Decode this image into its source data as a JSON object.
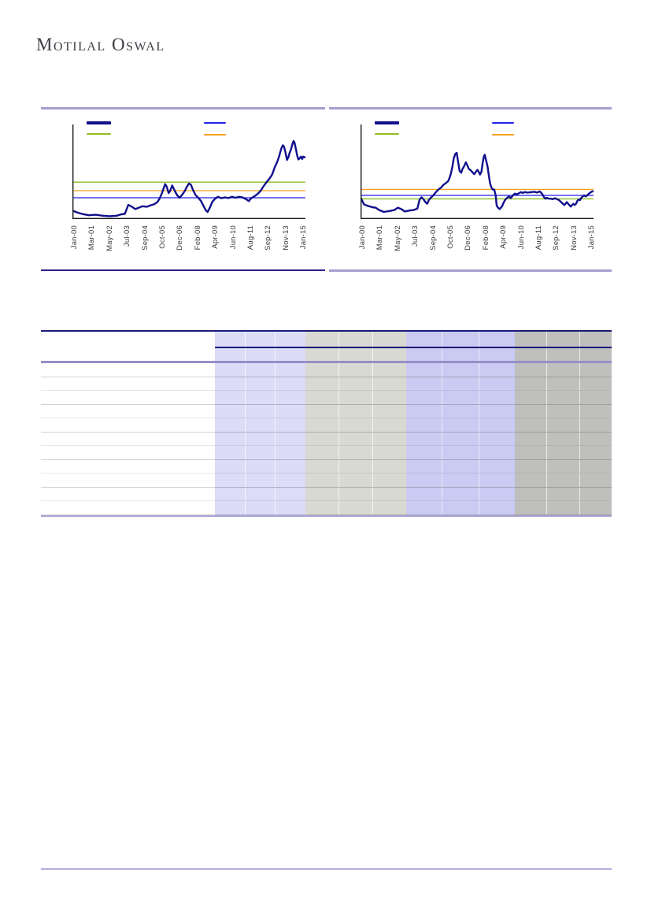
{
  "brand": {
    "name": "Motilal Oswal"
  },
  "colors": {
    "series_navy": "#10108c",
    "ref_blue": "#2222e8",
    "ref_green": "#8fbe1f",
    "ref_orange": "#f79f1c",
    "axis_black": "#1a1a1a",
    "divider_lavender": "#a79ecf",
    "divider_navy": "#2d2388",
    "footer_lavender": "#b5aedd",
    "table_top_border": "#1a1a78",
    "table_lavender_rule": "#968fc8",
    "table_bottom_border": "#a9a2d4"
  },
  "chart_data": [
    {
      "type": "line",
      "title": "",
      "xlabel": "",
      "ylabel": "",
      "x_tick_labels": [
        "Jan-00",
        "Mar-01",
        "May-02",
        "Jul-03",
        "Sep-04",
        "Oct-05",
        "Dec-06",
        "Feb-08",
        "Apr-09",
        "Jun-10",
        "Aug-11",
        "Sep-12",
        "Nov-13",
        "Jan-15"
      ],
      "note": "no y-axis tick values visible; y values normalized 0 (plot top) to 1 (baseline)",
      "legend_swatches": [
        {
          "color": "#10108c",
          "weight": "thick"
        },
        {
          "color": "#2222e8",
          "weight": "thin"
        },
        {
          "color": "#8fbe1f",
          "weight": "thin"
        },
        {
          "color": "#f79f1c",
          "weight": "thin"
        }
      ],
      "ref_lines": [
        {
          "color": "#8fbe1f",
          "y_norm": 0.61
        },
        {
          "color": "#f79f1c",
          "y_norm": 0.7
        },
        {
          "color": "#2222e8",
          "y_norm": 0.775
        }
      ],
      "series": [
        {
          "name": "primary",
          "color": "#10108c",
          "points_norm": [
            [
              0.0,
              0.91
            ],
            [
              0.02,
              0.93
            ],
            [
              0.04,
              0.945
            ],
            [
              0.07,
              0.96
            ],
            [
              0.1,
              0.955
            ],
            [
              0.13,
              0.965
            ],
            [
              0.16,
              0.97
            ],
            [
              0.19,
              0.965
            ],
            [
              0.21,
              0.95
            ],
            [
              0.225,
              0.945
            ],
            [
              0.24,
              0.85
            ],
            [
              0.255,
              0.87
            ],
            [
              0.27,
              0.895
            ],
            [
              0.285,
              0.88
            ],
            [
              0.3,
              0.865
            ],
            [
              0.32,
              0.87
            ],
            [
              0.335,
              0.855
            ],
            [
              0.35,
              0.845
            ],
            [
              0.365,
              0.82
            ],
            [
              0.375,
              0.78
            ],
            [
              0.385,
              0.72
            ],
            [
              0.398,
              0.63
            ],
            [
              0.405,
              0.66
            ],
            [
              0.413,
              0.725
            ],
            [
              0.42,
              0.7
            ],
            [
              0.428,
              0.645
            ],
            [
              0.435,
              0.68
            ],
            [
              0.443,
              0.72
            ],
            [
              0.45,
              0.75
            ],
            [
              0.46,
              0.775
            ],
            [
              0.472,
              0.74
            ],
            [
              0.483,
              0.7
            ],
            [
              0.49,
              0.665
            ],
            [
              0.5,
              0.625
            ],
            [
              0.508,
              0.635
            ],
            [
              0.518,
              0.695
            ],
            [
              0.528,
              0.745
            ],
            [
              0.54,
              0.775
            ],
            [
              0.552,
              0.81
            ],
            [
              0.562,
              0.86
            ],
            [
              0.572,
              0.905
            ],
            [
              0.58,
              0.925
            ],
            [
              0.59,
              0.88
            ],
            [
              0.6,
              0.82
            ],
            [
              0.612,
              0.785
            ],
            [
              0.625,
              0.765
            ],
            [
              0.64,
              0.78
            ],
            [
              0.655,
              0.772
            ],
            [
              0.67,
              0.778
            ],
            [
              0.685,
              0.765
            ],
            [
              0.7,
              0.775
            ],
            [
              0.715,
              0.765
            ],
            [
              0.73,
              0.772
            ],
            [
              0.745,
              0.79
            ],
            [
              0.757,
              0.81
            ],
            [
              0.768,
              0.778
            ],
            [
              0.78,
              0.762
            ],
            [
              0.795,
              0.735
            ],
            [
              0.808,
              0.7
            ],
            [
              0.82,
              0.655
            ],
            [
              0.833,
              0.61
            ],
            [
              0.845,
              0.575
            ],
            [
              0.857,
              0.53
            ],
            [
              0.868,
              0.455
            ],
            [
              0.878,
              0.4
            ],
            [
              0.886,
              0.345
            ],
            [
              0.893,
              0.285
            ],
            [
              0.898,
              0.245
            ],
            [
              0.903,
              0.22
            ],
            [
              0.908,
              0.235
            ],
            [
              0.915,
              0.3
            ],
            [
              0.921,
              0.375
            ],
            [
              0.927,
              0.345
            ],
            [
              0.932,
              0.3
            ],
            [
              0.938,
              0.265
            ],
            [
              0.944,
              0.21
            ],
            [
              0.949,
              0.175
            ],
            [
              0.953,
              0.19
            ],
            [
              0.959,
              0.26
            ],
            [
              0.965,
              0.33
            ],
            [
              0.97,
              0.37
            ],
            [
              0.976,
              0.355
            ],
            [
              0.981,
              0.34
            ],
            [
              0.986,
              0.365
            ],
            [
              0.991,
              0.34
            ],
            [
              1.0,
              0.35
            ]
          ]
        }
      ]
    },
    {
      "type": "line",
      "title": "",
      "xlabel": "",
      "ylabel": "",
      "x_tick_labels": [
        "Jan-00",
        "Mar-01",
        "May-02",
        "Jul-03",
        "Sep-04",
        "Oct-05",
        "Dec-06",
        "Feb-08",
        "Apr-09",
        "Jun-10",
        "Aug-11",
        "Sep-12",
        "Nov-13",
        "Jan-15"
      ],
      "note": "no y-axis tick values visible; y values normalized 0 (plot top) to 1 (baseline)",
      "legend_swatches": [
        {
          "color": "#10108c",
          "weight": "thick"
        },
        {
          "color": "#2222e8",
          "weight": "thin"
        },
        {
          "color": "#8fbe1f",
          "weight": "thin"
        },
        {
          "color": "#f79f1c",
          "weight": "thin"
        }
      ],
      "ref_lines": [
        {
          "color": "#f79f1c",
          "y_norm": 0.687
        },
        {
          "color": "#2222e8",
          "y_norm": 0.75
        },
        {
          "color": "#8fbe1f",
          "y_norm": 0.787
        }
      ],
      "series": [
        {
          "name": "primary",
          "color": "#10108c",
          "points_norm": [
            [
              0.0,
              0.77
            ],
            [
              0.015,
              0.845
            ],
            [
              0.03,
              0.86
            ],
            [
              0.05,
              0.875
            ],
            [
              0.065,
              0.88
            ],
            [
              0.08,
              0.905
            ],
            [
              0.1,
              0.925
            ],
            [
              0.125,
              0.915
            ],
            [
              0.145,
              0.905
            ],
            [
              0.16,
              0.88
            ],
            [
              0.175,
              0.895
            ],
            [
              0.19,
              0.92
            ],
            [
              0.21,
              0.91
            ],
            [
              0.228,
              0.905
            ],
            [
              0.244,
              0.89
            ],
            [
              0.254,
              0.79
            ],
            [
              0.262,
              0.77
            ],
            [
              0.27,
              0.79
            ],
            [
              0.278,
              0.82
            ],
            [
              0.286,
              0.838
            ],
            [
              0.293,
              0.8
            ],
            [
              0.3,
              0.778
            ],
            [
              0.312,
              0.75
            ],
            [
              0.322,
              0.72
            ],
            [
              0.333,
              0.69
            ],
            [
              0.345,
              0.668
            ],
            [
              0.356,
              0.638
            ],
            [
              0.366,
              0.62
            ],
            [
              0.376,
              0.6
            ],
            [
              0.383,
              0.558
            ],
            [
              0.388,
              0.52
            ],
            [
              0.394,
              0.45
            ],
            [
              0.4,
              0.36
            ],
            [
              0.407,
              0.31
            ],
            [
              0.413,
              0.3
            ],
            [
              0.418,
              0.38
            ],
            [
              0.425,
              0.49
            ],
            [
              0.432,
              0.51
            ],
            [
              0.438,
              0.47
            ],
            [
              0.445,
              0.44
            ],
            [
              0.452,
              0.4
            ],
            [
              0.458,
              0.43
            ],
            [
              0.465,
              0.47
            ],
            [
              0.473,
              0.485
            ],
            [
              0.48,
              0.505
            ],
            [
              0.488,
              0.525
            ],
            [
              0.495,
              0.5
            ],
            [
              0.502,
              0.48
            ],
            [
              0.509,
              0.51
            ],
            [
              0.513,
              0.53
            ],
            [
              0.519,
              0.5
            ],
            [
              0.524,
              0.41
            ],
            [
              0.529,
              0.34
            ],
            [
              0.533,
              0.32
            ],
            [
              0.539,
              0.38
            ],
            [
              0.545,
              0.44
            ],
            [
              0.55,
              0.53
            ],
            [
              0.556,
              0.625
            ],
            [
              0.562,
              0.67
            ],
            [
              0.568,
              0.688
            ],
            [
              0.574,
              0.688
            ],
            [
              0.58,
              0.75
            ],
            [
              0.584,
              0.855
            ],
            [
              0.59,
              0.88
            ],
            [
              0.597,
              0.895
            ],
            [
              0.603,
              0.878
            ],
            [
              0.608,
              0.862
            ],
            [
              0.614,
              0.828
            ],
            [
              0.62,
              0.8
            ],
            [
              0.628,
              0.778
            ],
            [
              0.637,
              0.762
            ],
            [
              0.645,
              0.778
            ],
            [
              0.654,
              0.75
            ],
            [
              0.662,
              0.732
            ],
            [
              0.671,
              0.74
            ],
            [
              0.679,
              0.728
            ],
            [
              0.688,
              0.716
            ],
            [
              0.696,
              0.724
            ],
            [
              0.705,
              0.714
            ],
            [
              0.713,
              0.72
            ],
            [
              0.723,
              0.718
            ],
            [
              0.737,
              0.714
            ],
            [
              0.747,
              0.712
            ],
            [
              0.757,
              0.72
            ],
            [
              0.769,
              0.708
            ],
            [
              0.774,
              0.718
            ],
            [
              0.781,
              0.74
            ],
            [
              0.787,
              0.768
            ],
            [
              0.794,
              0.785
            ],
            [
              0.8,
              0.776
            ],
            [
              0.808,
              0.785
            ],
            [
              0.817,
              0.785
            ],
            [
              0.825,
              0.79
            ],
            [
              0.834,
              0.78
            ],
            [
              0.844,
              0.79
            ],
            [
              0.852,
              0.8
            ],
            [
              0.861,
              0.822
            ],
            [
              0.869,
              0.84
            ],
            [
              0.875,
              0.852
            ],
            [
              0.879,
              0.84
            ],
            [
              0.885,
              0.822
            ],
            [
              0.892,
              0.84
            ],
            [
              0.896,
              0.852
            ],
            [
              0.902,
              0.868
            ],
            [
              0.908,
              0.852
            ],
            [
              0.913,
              0.84
            ],
            [
              0.919,
              0.852
            ],
            [
              0.925,
              0.838
            ],
            [
              0.93,
              0.81
            ],
            [
              0.936,
              0.792
            ],
            [
              0.942,
              0.8
            ],
            [
              0.947,
              0.778
            ],
            [
              0.953,
              0.762
            ],
            [
              0.96,
              0.75
            ],
            [
              0.966,
              0.762
            ],
            [
              0.973,
              0.75
            ],
            [
              0.98,
              0.732
            ],
            [
              0.986,
              0.72
            ],
            [
              0.993,
              0.71
            ],
            [
              1.0,
              0.705
            ]
          ]
        }
      ]
    }
  ],
  "table": {
    "label_column": {
      "bg": "#ffffff"
    },
    "column_groups": [
      {
        "name": "group-1",
        "bg": "#dcdcf8"
      },
      {
        "name": "group-2",
        "bg": "#d9d9d4"
      },
      {
        "name": "group-3",
        "bg": "#cacaf3"
      },
      {
        "name": "group-4",
        "bg": "#bfbfbd"
      }
    ],
    "subcols_per_group": 3,
    "header_rows": 2,
    "body_rows": 11
  }
}
